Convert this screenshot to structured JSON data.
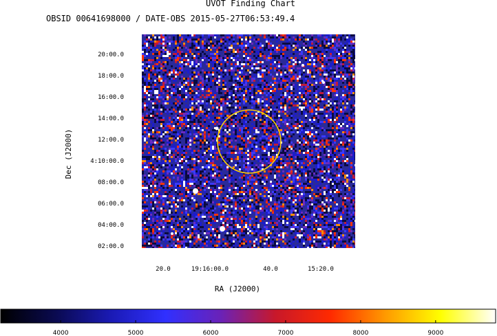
{
  "chart_data": {
    "type": "heatmap",
    "title": "UVOT Finding Chart",
    "subtitle": "OBSID 00641698000 / DATE-OBS 2015-05-27T06:53:49.4",
    "xlabel": "RA (J2000)",
    "ylabel": "Dec (J2000)",
    "x_ticks": [
      "20.0",
      "19:16:00.0",
      "40.0",
      "15:20.0"
    ],
    "y_ticks": [
      "20:00.0",
      "18:00.0",
      "16:00.0",
      "14:00.0",
      "12:00.0",
      "4:10:00.0",
      "08:00.0",
      "06:00.0",
      "04:00.0",
      "02:00.0"
    ],
    "colorbar": {
      "ticks": [
        4000,
        5000,
        6000,
        7000,
        8000,
        9000
      ],
      "range": [
        3200,
        9800
      ],
      "stops": [
        "#000000",
        "#0a0a50",
        "#1a1ab4",
        "#3030ff",
        "#6a22b8",
        "#c8182a",
        "#ff2a00",
        "#ff9a00",
        "#ffff00",
        "#ffffff"
      ]
    },
    "colors": {
      "background_image": "#2a2a9a",
      "circle": "#ffd200"
    }
  }
}
